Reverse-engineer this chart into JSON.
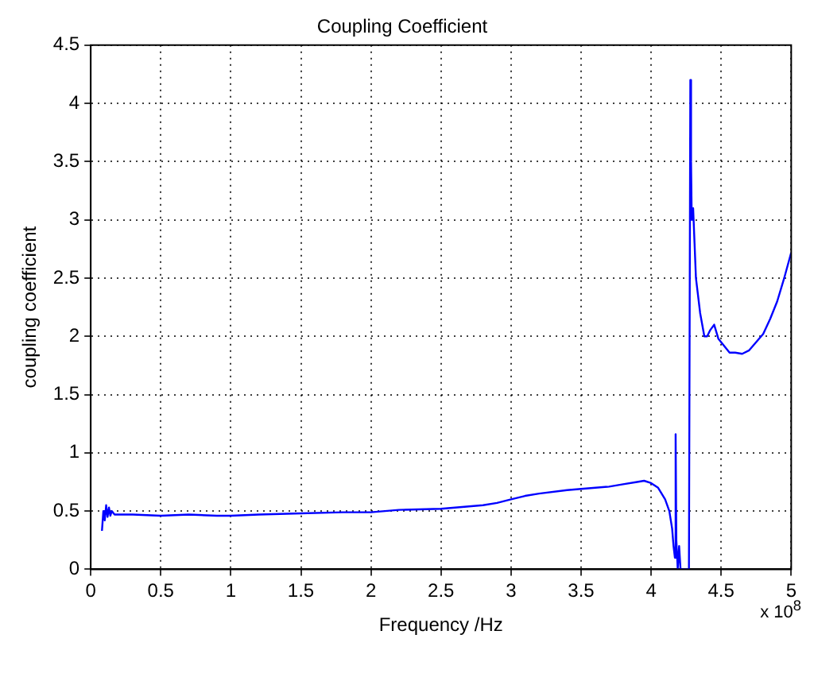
{
  "chart_data": {
    "type": "line",
    "title": "Coupling Coefficient",
    "xlabel": "Frequency /Hz",
    "ylabel": "coupling coefficient",
    "annotations": [
      "x 10$^{8}$"
    ],
    "series": [
      {
        "color": "#0000ff",
        "x": [
          0.08,
          0.09,
          0.1,
          0.11,
          0.12,
          0.13,
          0.14,
          0.15,
          0.17,
          0.2,
          0.3,
          0.5,
          0.7,
          0.9,
          1.0,
          1.2,
          1.5,
          1.8,
          2.0,
          2.2,
          2.5,
          2.7,
          2.8,
          2.9,
          3.0,
          3.1,
          3.2,
          3.4,
          3.5,
          3.7,
          3.8,
          3.9,
          3.95,
          4.0,
          4.05,
          4.1,
          4.13,
          4.15,
          4.16,
          4.17,
          4.175,
          4.18,
          4.19,
          4.2,
          4.21,
          4.27,
          4.28,
          4.285,
          4.29,
          4.3,
          4.31,
          4.32,
          4.35,
          4.38,
          4.4,
          4.42,
          4.45,
          4.48,
          4.52,
          4.56,
          4.6,
          4.65,
          4.7,
          4.75,
          4.8,
          4.85,
          4.9,
          4.95,
          5.0
        ],
        "values": [
          0.33,
          0.5,
          0.42,
          0.55,
          0.45,
          0.53,
          0.46,
          0.5,
          0.47,
          0.47,
          0.47,
          0.46,
          0.47,
          0.46,
          0.46,
          0.47,
          0.48,
          0.49,
          0.49,
          0.51,
          0.52,
          0.54,
          0.55,
          0.57,
          0.6,
          0.63,
          0.65,
          0.68,
          0.69,
          0.71,
          0.73,
          0.75,
          0.76,
          0.74,
          0.7,
          0.6,
          0.5,
          0.35,
          0.2,
          0.1,
          1.16,
          0.25,
          0.0,
          0.2,
          0.0,
          0.0,
          4.2,
          3.5,
          3.0,
          3.1,
          2.8,
          2.5,
          2.2,
          2.0,
          2.0,
          2.05,
          2.1,
          1.98,
          1.92,
          1.86,
          1.86,
          1.85,
          1.88,
          1.95,
          2.02,
          2.15,
          2.3,
          2.5,
          2.72
        ]
      }
    ],
    "xlim": [
      0,
      5
    ],
    "xticks": [
      0,
      0.5,
      1,
      1.5,
      2,
      2.5,
      3,
      3.5,
      4,
      4.5,
      5
    ],
    "ylim": [
      0,
      4.5
    ],
    "yticks": [
      0,
      0.5,
      1,
      1.5,
      2,
      2.5,
      3,
      3.5,
      4,
      4.5
    ],
    "grid": true,
    "legend": false,
    "line_style": "solid",
    "marker": "none"
  }
}
